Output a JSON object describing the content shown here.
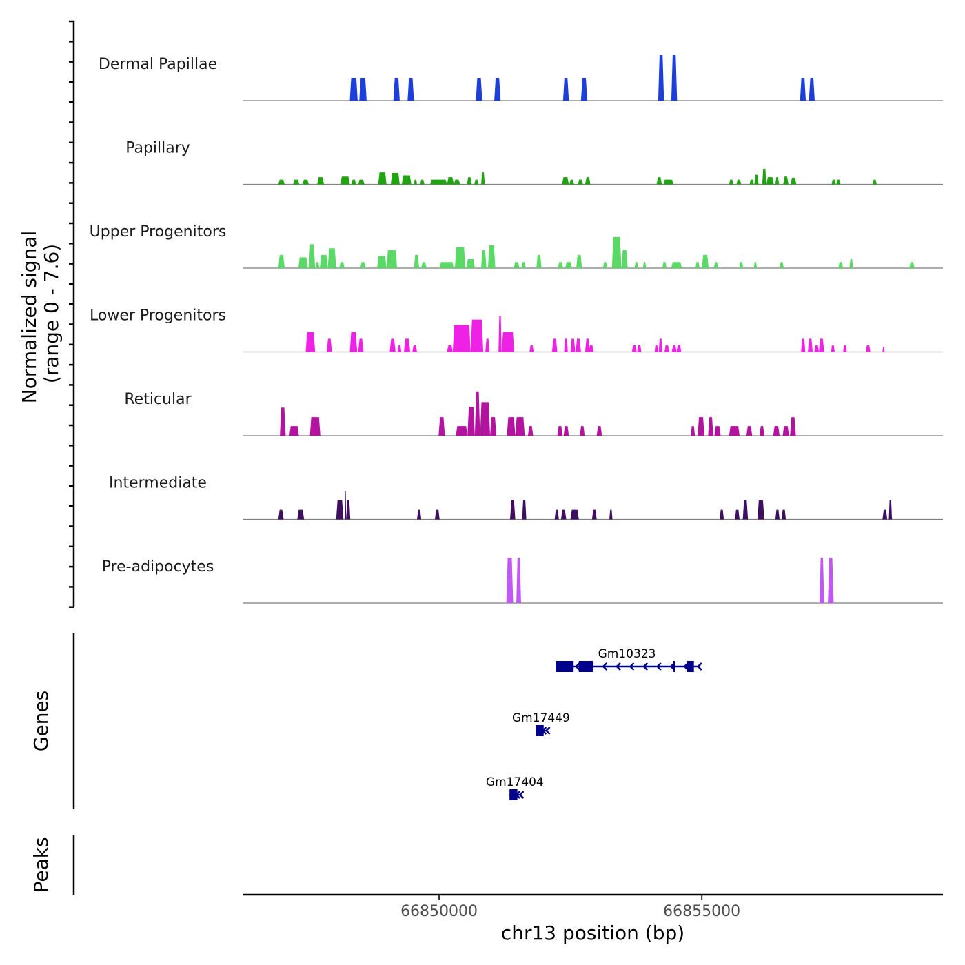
{
  "chart_data": {
    "type": "area",
    "title": "",
    "ylabel": "Normalized signal\n(range 0 - 7.6)",
    "ylabel_lines": [
      "Normalized signal",
      "(range 0 - 7.6)"
    ],
    "xlabel": "chr13 position (bp)",
    "chromosome": "chr13",
    "xlim": [
      66846260,
      66859590
    ],
    "ylim": [
      0,
      7.6
    ],
    "x_ticks": [
      66850000,
      66855000
    ],
    "x_tick_labels": [
      "66850000",
      "66855000"
    ],
    "grid": false,
    "legend": "none",
    "series": [
      {
        "name": "Dermal Papillae",
        "color": "#1c3fdb",
        "segments": [
          [
            66848300,
            66848450,
            3.8
          ],
          [
            66848480,
            66848620,
            3.8
          ],
          [
            66849130,
            66849250,
            3.8
          ],
          [
            66849400,
            66849520,
            3.8
          ],
          [
            66850700,
            66850820,
            3.8
          ],
          [
            66851050,
            66851170,
            3.8
          ],
          [
            66852360,
            66852470,
            3.8
          ],
          [
            66852700,
            66852820,
            3.8
          ],
          [
            66854170,
            66854280,
            7.6
          ],
          [
            66854420,
            66854530,
            7.6
          ],
          [
            66856870,
            66856980,
            3.8
          ],
          [
            66857040,
            66857150,
            3.8
          ]
        ]
      },
      {
        "name": "Papillary",
        "color": "#20a40f",
        "segments": [
          [
            66846940,
            66847060,
            0.8
          ],
          [
            66847220,
            66847340,
            0.8
          ],
          [
            66847400,
            66847520,
            0.8
          ],
          [
            66847680,
            66847810,
            1.2
          ],
          [
            66848120,
            66848300,
            1.3
          ],
          [
            66848330,
            66848420,
            0.8
          ],
          [
            66848460,
            66848580,
            0.8
          ],
          [
            66848840,
            66849000,
            2.0
          ],
          [
            66849080,
            66849250,
            1.9
          ],
          [
            66849290,
            66849470,
            1.5
          ],
          [
            66849520,
            66849580,
            0.8
          ],
          [
            66849640,
            66849720,
            0.8
          ],
          [
            66849830,
            66850150,
            0.8
          ],
          [
            66850150,
            66850280,
            1.2
          ],
          [
            66850280,
            66850400,
            0.8
          ],
          [
            66850530,
            66850620,
            1.2
          ],
          [
            66850670,
            66850750,
            0.8
          ],
          [
            66850800,
            66850870,
            2.0
          ],
          [
            66852340,
            66852470,
            1.2
          ],
          [
            66852480,
            66852570,
            0.8
          ],
          [
            66852640,
            66852740,
            0.8
          ],
          [
            66852780,
            66852880,
            1.2
          ],
          [
            66854140,
            66854240,
            1.2
          ],
          [
            66854270,
            66854460,
            0.8
          ],
          [
            66855520,
            66855600,
            0.8
          ],
          [
            66855660,
            66855750,
            0.8
          ],
          [
            66855910,
            66855990,
            0.8
          ],
          [
            66856000,
            66856080,
            1.6
          ],
          [
            66856150,
            66856230,
            2.6
          ],
          [
            66856230,
            66856370,
            1.2
          ],
          [
            66856400,
            66856470,
            1.2
          ],
          [
            66856550,
            66856650,
            1.3
          ],
          [
            66856690,
            66856800,
            1.1
          ],
          [
            66857470,
            66857550,
            0.8
          ],
          [
            66857560,
            66857640,
            0.8
          ],
          [
            66858250,
            66858330,
            0.8
          ]
        ]
      },
      {
        "name": "Upper Progenitors",
        "color": "#5ad966",
        "segments": [
          [
            66846940,
            66847060,
            2.2
          ],
          [
            66847320,
            66847500,
            1.8
          ],
          [
            66847520,
            66847640,
            4.0
          ],
          [
            66847650,
            66847720,
            1.0
          ],
          [
            66847730,
            66847880,
            2.2
          ],
          [
            66847880,
            66848040,
            3.3
          ],
          [
            66848100,
            66848200,
            1.0
          ],
          [
            66848500,
            66848600,
            1.0
          ],
          [
            66848820,
            66849000,
            2.0
          ],
          [
            66849000,
            66849200,
            3.0
          ],
          [
            66849520,
            66849620,
            2.2
          ],
          [
            66849660,
            66849760,
            1.0
          ],
          [
            66850010,
            66850280,
            1.0
          ],
          [
            66850300,
            66850500,
            3.5
          ],
          [
            66850520,
            66850680,
            1.5
          ],
          [
            66850800,
            66850900,
            3.0
          ],
          [
            66850930,
            66851070,
            3.8
          ],
          [
            66851420,
            66851530,
            1.0
          ],
          [
            66851570,
            66851650,
            1.0
          ],
          [
            66851850,
            66851950,
            2.2
          ],
          [
            66852260,
            66852360,
            1.0
          ],
          [
            66852400,
            66852530,
            1.0
          ],
          [
            66852610,
            66852720,
            2.2
          ],
          [
            66853120,
            66853200,
            1.0
          ],
          [
            66853290,
            66853470,
            5.2
          ],
          [
            66853470,
            66853590,
            3.0
          ],
          [
            66853720,
            66853790,
            1.0
          ],
          [
            66853880,
            66853940,
            1.0
          ],
          [
            66854250,
            66854330,
            1.0
          ],
          [
            66854420,
            66854620,
            1.0
          ],
          [
            66854880,
            66854960,
            1.0
          ],
          [
            66855000,
            66855130,
            2.2
          ],
          [
            66855230,
            66855310,
            1.0
          ],
          [
            66855710,
            66855790,
            1.0
          ],
          [
            66855990,
            66856050,
            1.0
          ],
          [
            66856480,
            66856560,
            1.0
          ],
          [
            66857600,
            66857690,
            1.0
          ],
          [
            66857810,
            66857880,
            1.5
          ],
          [
            66858950,
            66859050,
            1.0
          ]
        ]
      },
      {
        "name": "Lower Progenitors",
        "color": "#ee22e4",
        "segments": [
          [
            66847460,
            66847640,
            3.3
          ],
          [
            66847860,
            66847960,
            2.2
          ],
          [
            66848300,
            66848440,
            3.3
          ],
          [
            66848460,
            66848560,
            2.2
          ],
          [
            66849060,
            66849170,
            2.2
          ],
          [
            66849210,
            66849280,
            1.1
          ],
          [
            66849330,
            66849450,
            2.2
          ],
          [
            66849490,
            66849580,
            1.1
          ],
          [
            66850150,
            66850260,
            1.1
          ],
          [
            66850260,
            66850600,
            4.5
          ],
          [
            66850600,
            66850840,
            5.4
          ],
          [
            66850880,
            66850960,
            2.2
          ],
          [
            66851130,
            66851190,
            6.0
          ],
          [
            66851190,
            66851430,
            3.3
          ],
          [
            66851720,
            66851800,
            1.1
          ],
          [
            66852150,
            66852250,
            2.2
          ],
          [
            66852380,
            66852450,
            2.2
          ],
          [
            66852500,
            66852590,
            2.2
          ],
          [
            66852600,
            66852700,
            2.2
          ],
          [
            66852780,
            66852870,
            2.2
          ],
          [
            66852850,
            66852940,
            1.1
          ],
          [
            66853670,
            66853760,
            1.1
          ],
          [
            66853770,
            66853850,
            1.1
          ],
          [
            66854100,
            66854170,
            1.1
          ],
          [
            66854180,
            66854250,
            2.2
          ],
          [
            66854290,
            66854380,
            1.1
          ],
          [
            66854430,
            66854520,
            1.1
          ],
          [
            66854520,
            66854610,
            1.1
          ],
          [
            66856890,
            66856970,
            2.2
          ],
          [
            66857020,
            66857110,
            2.2
          ],
          [
            66857140,
            66857230,
            1.1
          ],
          [
            66857230,
            66857330,
            2.2
          ],
          [
            66857460,
            66857530,
            1.1
          ],
          [
            66857690,
            66857760,
            1.1
          ],
          [
            66858120,
            66858210,
            1.1
          ],
          [
            66858440,
            66858480,
            0.8
          ]
        ]
      },
      {
        "name": "Reticular",
        "color": "#b4139f",
        "segments": [
          [
            66846970,
            66847080,
            4.7
          ],
          [
            66847150,
            66847330,
            1.6
          ],
          [
            66847540,
            66847740,
            3.1
          ],
          [
            66849990,
            66850110,
            3.1
          ],
          [
            66850320,
            66850540,
            1.6
          ],
          [
            66850540,
            66850680,
            4.8
          ],
          [
            66850680,
            66850780,
            7.4
          ],
          [
            66850780,
            66850970,
            5.6
          ],
          [
            66850970,
            66851090,
            3.1
          ],
          [
            66851290,
            66851450,
            3.1
          ],
          [
            66851450,
            66851630,
            3.1
          ],
          [
            66851690,
            66851790,
            1.6
          ],
          [
            66852250,
            66852350,
            1.6
          ],
          [
            66852370,
            66852470,
            1.6
          ],
          [
            66852680,
            66852770,
            1.6
          ],
          [
            66853000,
            66853100,
            1.6
          ],
          [
            66854790,
            66854870,
            1.6
          ],
          [
            66854920,
            66855050,
            3.1
          ],
          [
            66855120,
            66855220,
            3.1
          ],
          [
            66855240,
            66855360,
            1.6
          ],
          [
            66855520,
            66855720,
            1.6
          ],
          [
            66855850,
            66855960,
            1.6
          ],
          [
            66856100,
            66856190,
            1.6
          ],
          [
            66856360,
            66856480,
            1.6
          ],
          [
            66856540,
            66856660,
            1.6
          ],
          [
            66856680,
            66856790,
            3.1
          ]
        ]
      },
      {
        "name": "Intermediate",
        "color": "#3d0f5e",
        "segments": [
          [
            66846940,
            66847040,
            1.6
          ],
          [
            66847300,
            66847430,
            1.6
          ],
          [
            66848040,
            66848180,
            3.2
          ],
          [
            66848200,
            66848230,
            4.7
          ],
          [
            66848230,
            66848310,
            3.2
          ],
          [
            66849580,
            66849660,
            1.6
          ],
          [
            66849920,
            66850010,
            1.6
          ],
          [
            66851350,
            66851450,
            3.2
          ],
          [
            66851580,
            66851660,
            3.2
          ],
          [
            66852200,
            66852280,
            1.6
          ],
          [
            66852320,
            66852420,
            1.6
          ],
          [
            66852500,
            66852660,
            1.6
          ],
          [
            66852910,
            66853000,
            1.6
          ],
          [
            66853240,
            66853300,
            1.6
          ],
          [
            66855340,
            66855420,
            1.6
          ],
          [
            66855630,
            66855720,
            1.6
          ],
          [
            66855780,
            66855880,
            3.2
          ],
          [
            66856060,
            66856190,
            3.2
          ],
          [
            66856400,
            66856480,
            1.6
          ],
          [
            66856520,
            66856600,
            1.6
          ],
          [
            66858440,
            66858530,
            1.6
          ],
          [
            66858560,
            66858620,
            3.2
          ]
        ]
      },
      {
        "name": "Pre-adipocytes",
        "color": "#c158f3",
        "segments": [
          [
            66851280,
            66851410,
            7.6
          ],
          [
            66851470,
            66851560,
            7.6
          ],
          [
            66857240,
            66857330,
            7.6
          ],
          [
            66857400,
            66857510,
            7.6
          ]
        ]
      }
    ],
    "genes": [
      {
        "name": "Gm10323",
        "strand": "-",
        "start": 66852220,
        "end": 66854930,
        "exons": [
          [
            66852220,
            66852560
          ],
          [
            66852660,
            66852930
          ],
          [
            66854450,
            66854490
          ],
          [
            66854720,
            66854850
          ]
        ],
        "row": 1
      },
      {
        "name": "Gm17449",
        "strand": "-",
        "start": 66851840,
        "end": 66852040,
        "exons": [
          [
            66851840,
            66851990
          ]
        ],
        "row": 2
      },
      {
        "name": "Gm17404",
        "strand": "-",
        "start": 66851340,
        "end": 66851540,
        "exons": [
          [
            66851340,
            66851490
          ]
        ],
        "row": 3
      }
    ],
    "panels": {
      "genes_label": "Genes",
      "peaks_label": "Peaks"
    },
    "peaks": []
  },
  "colors": {
    "gene": "#00008b",
    "baseline": "#7f7f7f",
    "axis": "#000000"
  }
}
